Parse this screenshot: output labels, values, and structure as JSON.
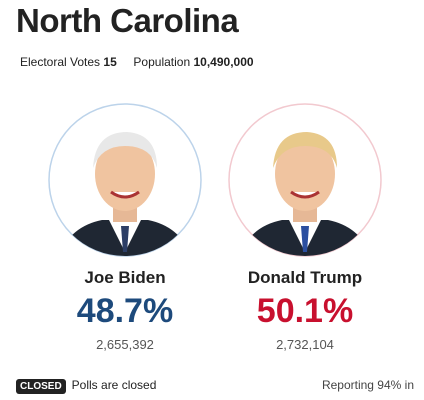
{
  "header": {
    "title": "North Carolina",
    "electoral_votes_label": "Electoral Votes",
    "electoral_votes": "15",
    "population_label": "Population",
    "population": "10,490,000"
  },
  "candidates": [
    {
      "name": "Joe Biden",
      "percent": "48.7%",
      "votes": "2,655,392",
      "color": "#1d4a7c",
      "ring": "#bcd3ea"
    },
    {
      "name": "Donald Trump",
      "percent": "50.1%",
      "votes": "2,732,104",
      "color": "#c8102e",
      "ring": "#f2c9cf"
    }
  ],
  "footer": {
    "status": "CLOSED",
    "status_text": "Polls are closed",
    "reporting": "Reporting 94% in"
  }
}
